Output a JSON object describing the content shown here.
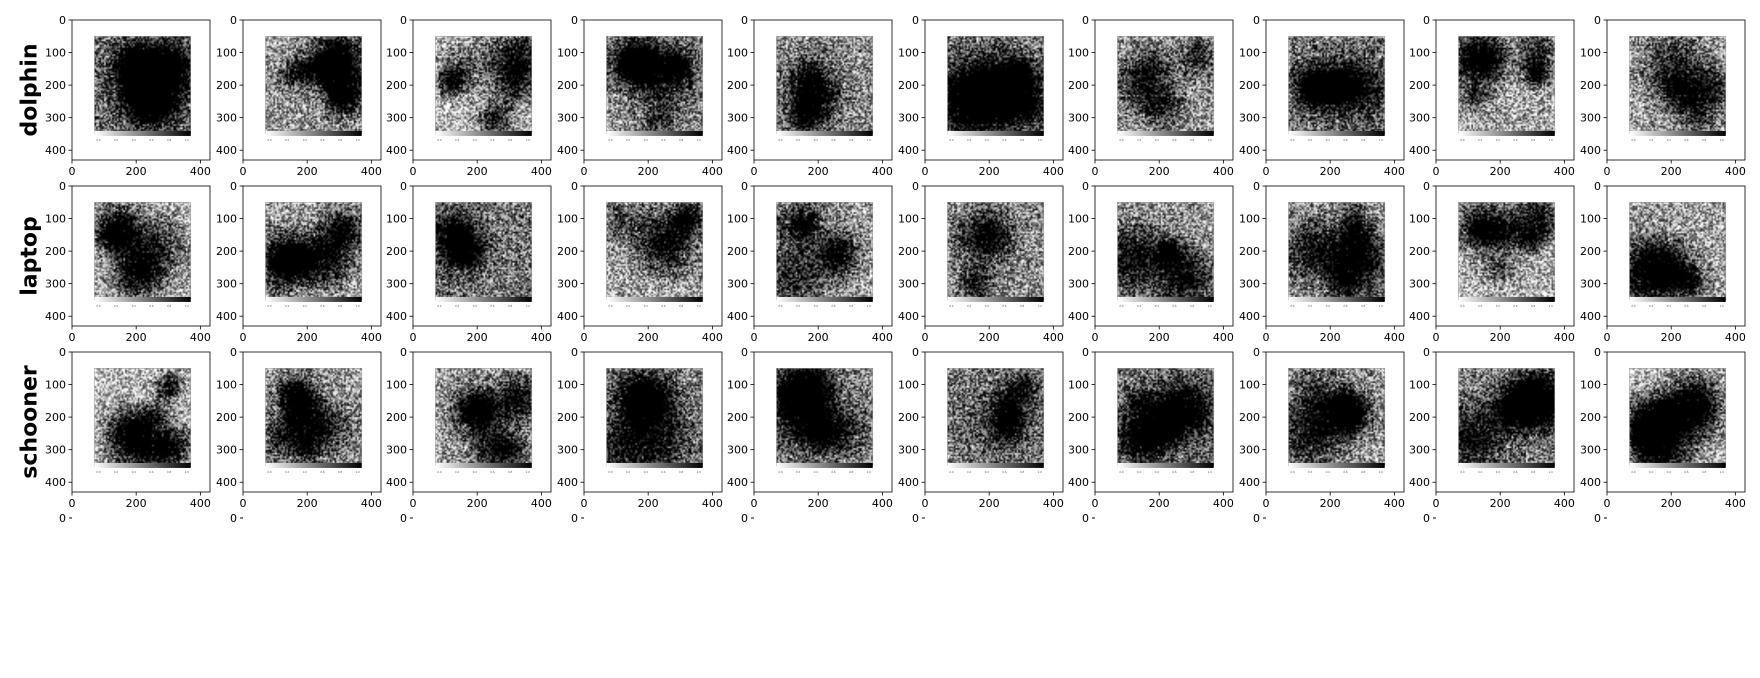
{
  "rows": [
    "dolphin",
    "laptop",
    "schooner"
  ],
  "columns_per_row": 10,
  "chart_data": {
    "type": "heatmap",
    "title": "",
    "xlabel": "",
    "ylabel": "",
    "xlim": [
      0,
      430
    ],
    "ylim": [
      430,
      0
    ],
    "xticks": [
      0,
      200,
      400
    ],
    "yticks": [
      0,
      100,
      200,
      300,
      400
    ],
    "image_extent": [
      70,
      370,
      50,
      350
    ],
    "colorbar_ticks": [
      "0.0",
      "0.2",
      "0.4",
      "0.6",
      "0.8",
      "1.0"
    ],
    "colormap": "grayscale"
  },
  "partial_row": {
    "yticks": [
      0
    ]
  }
}
